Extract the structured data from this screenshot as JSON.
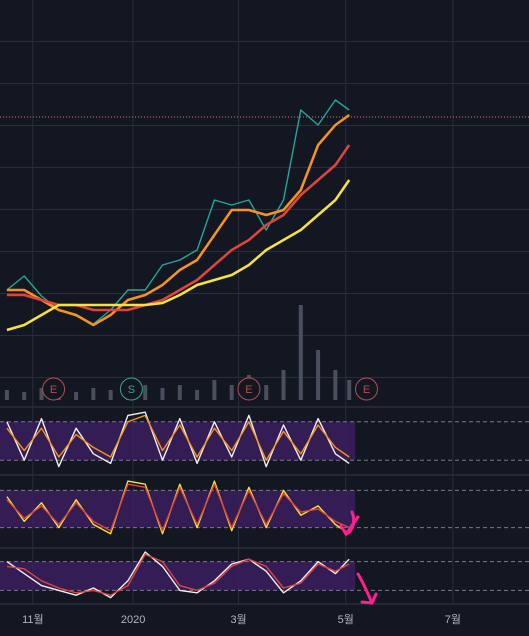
{
  "chart_data": [
    {
      "type": "line",
      "x": [
        -15,
        -5,
        5,
        15,
        25,
        35,
        45,
        55,
        65,
        75,
        85,
        95,
        105,
        115,
        125,
        135,
        145,
        155,
        165,
        175,
        183
      ],
      "xlim": [
        -19,
        287
      ],
      "xticks": [
        {
          "value": 0,
          "label": "11월"
        },
        {
          "value": 58,
          "label": "2020"
        },
        {
          "value": 119,
          "label": "3월"
        },
        {
          "value": 181,
          "label": "5월"
        },
        {
          "value": 243,
          "label": "7월"
        }
      ],
      "ylim": [
        0,
        100
      ],
      "y2lim": [
        0,
        400
      ],
      "grid": true,
      "series": [
        {
          "color": "#26a69a",
          "values": [
            27.5,
            31,
            26,
            22.5,
            21,
            19,
            22.5,
            27.5,
            27.5,
            33.75,
            35,
            37.5,
            50,
            48.75,
            50,
            42.5,
            50,
            72.5,
            68.75,
            75,
            72.5
          ]
        },
        {
          "color": "#f7931a",
          "values": [
            27.5,
            27.5,
            25,
            22.5,
            21.25,
            18.75,
            21.25,
            25,
            26.25,
            28.75,
            32.5,
            35,
            41.25,
            47.5,
            47.5,
            46.25,
            47.5,
            52.5,
            63.75,
            68.75,
            71.25
          ]
        },
        {
          "color": "#e0443b",
          "values": [
            26.25,
            26.25,
            25,
            23.75,
            23.75,
            22.5,
            22.5,
            22.5,
            23.75,
            25,
            27.5,
            30,
            33.75,
            37.5,
            40,
            43.75,
            46.25,
            51.25,
            55,
            58.75,
            63.75
          ]
        },
        {
          "color": "#f5e33a",
          "values": [
            17.5,
            18.75,
            21.25,
            23.75,
            23.75,
            23.75,
            23.75,
            23.75,
            23.75,
            24.25,
            26.25,
            28.75,
            30,
            31.25,
            33.75,
            37.5,
            40,
            42.5,
            46.25,
            50,
            55
          ]
        },
        {
          "type": "bar",
          "axis": "y2",
          "color": "#4a4f5e",
          "values": [
            10,
            8,
            12,
            10,
            8,
            12,
            10,
            8,
            15,
            12,
            15,
            10,
            20,
            15,
            25,
            15,
            30,
            95,
            50,
            30,
            20
          ]
        }
      ],
      "price_line": 70.75,
      "price_line_color": "#f06b6b",
      "events": {
        "x": [
          12,
          57,
          125,
          193
        ],
        "labels": [
          "E",
          "S",
          "E",
          "E"
        ],
        "colors": [
          "#b05050",
          "#3fa38f",
          "#b05050",
          "#b05050"
        ]
      }
    },
    {
      "type": "line",
      "x": [
        -15,
        -5,
        5,
        15,
        25,
        35,
        45,
        55,
        65,
        75,
        85,
        95,
        105,
        115,
        125,
        135,
        145,
        155,
        165,
        175,
        183
      ],
      "xlim": [
        -19,
        287
      ],
      "ylim": [
        0,
        100
      ],
      "levels": [
        20,
        80
      ],
      "band_color": "#3b1f5e",
      "series": [
        {
          "color": "#f0f0f0",
          "values": [
            80,
            20,
            85,
            10,
            70,
            30,
            15,
            90,
            95,
            20,
            85,
            15,
            80,
            25,
            90,
            10,
            75,
            20,
            85,
            30,
            15
          ]
        },
        {
          "color": "#f7931a",
          "values": [
            70,
            35,
            70,
            25,
            60,
            40,
            25,
            80,
            90,
            35,
            75,
            25,
            70,
            35,
            80,
            20,
            65,
            30,
            75,
            40,
            25
          ]
        }
      ]
    },
    {
      "type": "line",
      "x": [
        -15,
        -5,
        5,
        15,
        25,
        35,
        45,
        55,
        65,
        75,
        85,
        95,
        105,
        115,
        125,
        135,
        145,
        155,
        165,
        175,
        183
      ],
      "xlim": [
        -19,
        287
      ],
      "ylim": [
        0,
        100
      ],
      "levels": [
        20,
        80
      ],
      "band_color": "#3b1f5e",
      "series": [
        {
          "color": "#f5e33a",
          "values": [
            70,
            30,
            60,
            20,
            65,
            25,
            10,
            95,
            90,
            10,
            90,
            20,
            95,
            15,
            85,
            20,
            80,
            40,
            55,
            25,
            10
          ]
        },
        {
          "color": "#e0443b",
          "values": [
            65,
            35,
            55,
            25,
            60,
            30,
            15,
            90,
            85,
            15,
            85,
            25,
            90,
            20,
            80,
            25,
            75,
            45,
            50,
            30,
            20
          ]
        }
      ]
    },
    {
      "type": "line",
      "x": [
        -15,
        -5,
        5,
        15,
        25,
        35,
        45,
        55,
        65,
        75,
        85,
        95,
        105,
        115,
        125,
        135,
        145,
        155,
        165,
        175,
        183
      ],
      "xlim": [
        -19,
        287
      ],
      "ylim": [
        0,
        100
      ],
      "levels": [
        20,
        80
      ],
      "band_color": "#3b1f5e",
      "series": [
        {
          "color": "#f0f0f0",
          "values": [
            80,
            55,
            30,
            20,
            10,
            25,
            5,
            40,
            100,
            70,
            20,
            15,
            40,
            75,
            85,
            60,
            15,
            40,
            80,
            55,
            85
          ]
        },
        {
          "color": "#e0443b",
          "values": [
            70,
            65,
            40,
            25,
            15,
            20,
            10,
            30,
            95,
            80,
            30,
            20,
            35,
            70,
            85,
            70,
            25,
            35,
            75,
            60,
            75
          ]
        }
      ]
    }
  ]
}
